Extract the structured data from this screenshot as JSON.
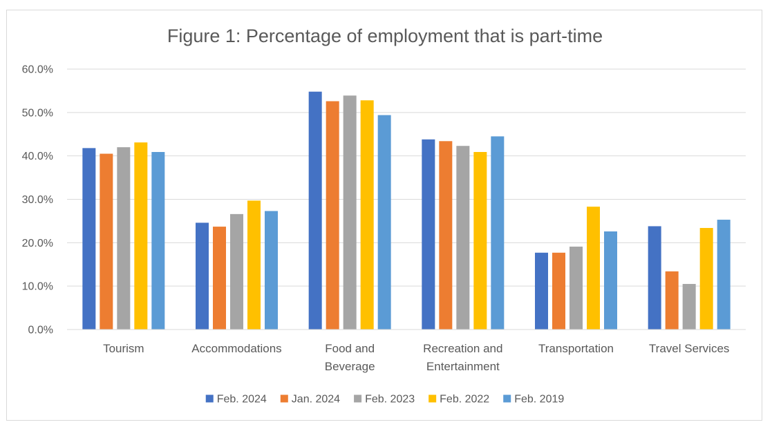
{
  "chart_data": {
    "type": "bar",
    "title": "Figure 1: Percentage of employment that is part-time",
    "xlabel": "",
    "ylabel": "",
    "ylim": [
      0,
      60
    ],
    "y_ticks": [
      "0.0%",
      "10.0%",
      "20.0%",
      "30.0%",
      "40.0%",
      "50.0%",
      "60.0%"
    ],
    "grid": true,
    "legend_position": "bottom",
    "categories": [
      [
        "Tourism"
      ],
      [
        "Accommodations"
      ],
      [
        "Food and",
        "Beverage"
      ],
      [
        "Recreation and",
        "Entertainment"
      ],
      [
        "Transportation"
      ],
      [
        "Travel Services"
      ]
    ],
    "series": [
      {
        "name": "Feb. 2024",
        "color": "#4472c4",
        "values": [
          41.8,
          24.6,
          54.8,
          43.8,
          17.7,
          23.8
        ]
      },
      {
        "name": "Jan. 2024",
        "color": "#ed7d31",
        "values": [
          40.5,
          23.7,
          52.6,
          43.4,
          17.7,
          13.4
        ]
      },
      {
        "name": "Feb. 2023",
        "color": "#a5a5a5",
        "values": [
          42.0,
          26.6,
          53.9,
          42.3,
          19.1,
          10.5
        ]
      },
      {
        "name": "Feb. 2022",
        "color": "#ffc000",
        "values": [
          43.1,
          29.7,
          52.8,
          40.9,
          28.3,
          23.4
        ]
      },
      {
        "name": "Feb. 2019",
        "color": "#5b9bd5",
        "values": [
          40.9,
          27.3,
          49.4,
          44.5,
          22.6,
          25.3
        ]
      }
    ]
  }
}
